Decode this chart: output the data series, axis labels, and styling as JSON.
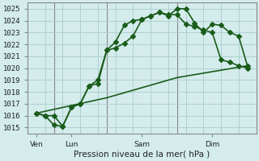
{
  "background_color": "#d4ecec",
  "grid_color": "#b0d0d0",
  "line_color": "#1a5c1a",
  "title": "Pression niveau de la mer( hPa )",
  "ylim": [
    1014.5,
    1025.5
  ],
  "yticks": [
    1015,
    1016,
    1017,
    1018,
    1019,
    1020,
    1021,
    1022,
    1023,
    1024,
    1025
  ],
  "xlim": [
    0,
    13
  ],
  "xtick_positions": [
    0.5,
    2.5,
    6.5,
    10.5
  ],
  "xtick_labels": [
    "Ven",
    "Lun",
    "Sam",
    "Dim"
  ],
  "vline_positions": [
    1.5,
    4.5,
    8.5
  ],
  "num_x_grid": 13,
  "series1_x": [
    0.5,
    1.0,
    1.5,
    2.0,
    2.5,
    3.0,
    3.5,
    4.0,
    4.5,
    5.0,
    5.5,
    6.0,
    6.5,
    7.0,
    7.5,
    8.0,
    8.5,
    9.0,
    9.5,
    10.0,
    10.5,
    11.0,
    11.5,
    12.0,
    12.5
  ],
  "series1_y": [
    1016.2,
    1016.0,
    1016.0,
    1015.1,
    1016.7,
    1017.0,
    1018.5,
    1019.0,
    1021.5,
    1021.7,
    1022.1,
    1022.7,
    1024.1,
    1024.4,
    1024.7,
    1024.5,
    1024.5,
    1023.7,
    1023.5,
    1023.2,
    1023.0,
    1020.7,
    1020.5,
    1020.2,
    1020.0
  ],
  "series2_x": [
    0.5,
    1.0,
    1.5,
    2.0,
    2.5,
    3.0,
    3.5,
    4.0,
    4.5,
    5.0,
    5.5,
    6.0,
    6.5,
    7.0,
    7.5,
    8.0,
    8.5,
    9.0,
    9.5,
    10.0,
    10.5,
    11.0,
    11.5,
    12.0,
    12.5
  ],
  "series2_y": [
    1016.2,
    1016.0,
    1015.2,
    1015.1,
    1016.7,
    1017.0,
    1018.5,
    1018.7,
    1021.5,
    1022.2,
    1023.6,
    1024.0,
    1024.1,
    1024.4,
    1024.7,
    1024.4,
    1025.0,
    1025.0,
    1023.8,
    1023.0,
    1023.7,
    1023.6,
    1023.0,
    1022.7,
    1020.2
  ],
  "series3_x": [
    0.5,
    4.5,
    8.5,
    12.5
  ],
  "series3_y": [
    1016.2,
    1017.5,
    1019.2,
    1020.2
  ],
  "marker_size": 3.0,
  "linewidth": 1.2,
  "title_fontsize": 7.5,
  "tick_fontsize": 6.5
}
